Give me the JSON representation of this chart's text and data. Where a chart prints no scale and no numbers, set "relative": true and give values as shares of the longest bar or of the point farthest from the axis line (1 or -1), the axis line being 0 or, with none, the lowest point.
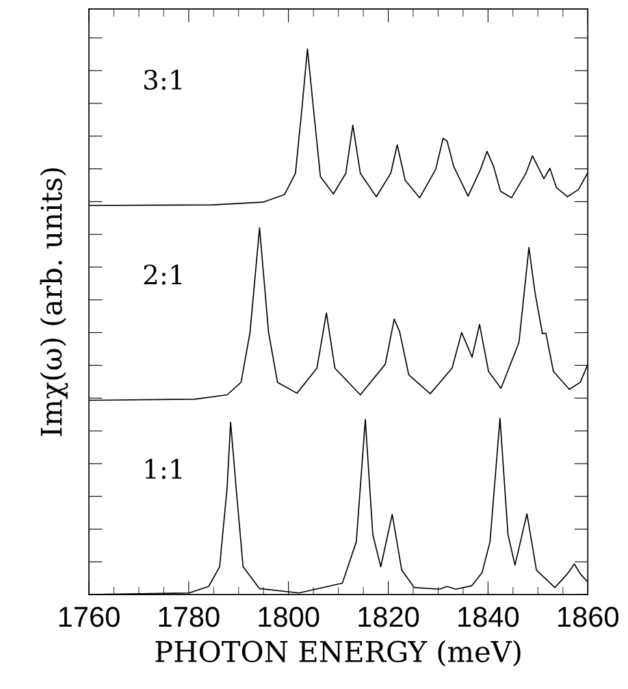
{
  "chart_data": {
    "type": "line",
    "relative": true,
    "xlabel": "PHOTON ENERGY (meV)",
    "ylabel": "Imχ(ω) (arb. units)",
    "xlim": [
      1760,
      1860
    ],
    "xticks": [
      1760,
      1780,
      1800,
      1820,
      1840,
      1860
    ],
    "grid": false,
    "legend": "left",
    "marker": "none",
    "line_style": "solid",
    "series": [
      {
        "name": "3:1",
        "color": "#000000",
        "x": [
          1760,
          1784.8,
          1794.9,
          1799.2,
          1801.4,
          1802.7,
          1803.8,
          1805.0,
          1806.4,
          1809.0,
          1811.5,
          1812.9,
          1814.4,
          1817.6,
          1820.5,
          1821.8,
          1823.4,
          1826.3,
          1829.5,
          1831.0,
          1831.8,
          1833.1,
          1836.0,
          1838.5,
          1839.8,
          1841.1,
          1842.5,
          1844.7,
          1847.6,
          1848.9,
          1850.1,
          1851.2,
          1852.4,
          1853.7,
          1855.9,
          1858.1,
          1860
        ],
        "values": [
          0.713,
          0.714,
          0.719,
          0.733,
          0.772,
          0.891,
          1.0,
          0.891,
          0.766,
          0.734,
          0.772,
          0.86,
          0.772,
          0.729,
          0.772,
          0.824,
          0.759,
          0.727,
          0.779,
          0.836,
          0.831,
          0.785,
          0.73,
          0.779,
          0.812,
          0.785,
          0.739,
          0.727,
          0.772,
          0.804,
          0.782,
          0.762,
          0.781,
          0.746,
          0.729,
          0.742,
          0.773
        ]
      },
      {
        "name": "2:1",
        "color": "#000000",
        "x": [
          1760,
          1781.2,
          1787.7,
          1790.5,
          1792.3,
          1794.2,
          1796.0,
          1797.8,
          1801.7,
          1805.7,
          1807.6,
          1809.3,
          1814.4,
          1819.4,
          1821.2,
          1822.3,
          1824.1,
          1828.4,
          1832.8,
          1834.7,
          1835.7,
          1836.8,
          1838.3,
          1840.1,
          1842.6,
          1846.2,
          1848.2,
          1849.4,
          1850.9,
          1851.6,
          1853.1,
          1856.3,
          1858.5,
          1860
        ],
        "values": [
          0.356,
          0.358,
          0.366,
          0.389,
          0.481,
          0.672,
          0.481,
          0.389,
          0.369,
          0.415,
          0.516,
          0.415,
          0.366,
          0.422,
          0.505,
          0.481,
          0.403,
          0.368,
          0.415,
          0.48,
          0.459,
          0.435,
          0.495,
          0.409,
          0.378,
          0.462,
          0.636,
          0.554,
          0.478,
          0.479,
          0.409,
          0.376,
          0.389,
          0.422
        ]
      },
      {
        "name": "1:1",
        "color": "#000000",
        "x": [
          1760,
          1780.1,
          1784.0,
          1786.2,
          1787.7,
          1788.4,
          1789.5,
          1790.9,
          1794.2,
          1802.1,
          1810.8,
          1813.6,
          1815.4,
          1816.9,
          1818.5,
          1820.8,
          1822.7,
          1825.2,
          1830.3,
          1831.8,
          1833.5,
          1836.7,
          1838.8,
          1840.4,
          1842.4,
          1844.0,
          1845.4,
          1847.8,
          1849.7,
          1853.4,
          1855.9,
          1857.3,
          1858.5,
          1860
        ],
        "values": [
          0,
          0.003,
          0.015,
          0.051,
          0.196,
          0.316,
          0.196,
          0.051,
          0.011,
          0.003,
          0.021,
          0.097,
          0.321,
          0.11,
          0.051,
          0.147,
          0.045,
          0.013,
          0.01,
          0.015,
          0.01,
          0.016,
          0.04,
          0.097,
          0.323,
          0.11,
          0.054,
          0.148,
          0.045,
          0.013,
          0.038,
          0.056,
          0.038,
          0.023
        ]
      }
    ]
  }
}
